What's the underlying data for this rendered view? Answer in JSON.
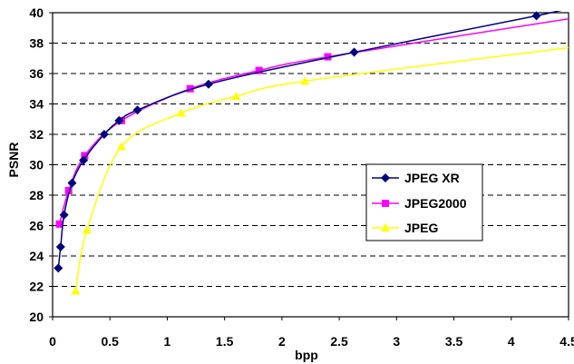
{
  "chart_data": {
    "type": "line",
    "xlabel": "bpp",
    "ylabel": "PSNR",
    "xlim": [
      0,
      4.5
    ],
    "ylim": [
      20,
      40
    ],
    "xticks": [
      0,
      0.5,
      1,
      1.5,
      2,
      2.5,
      3,
      3.5,
      4,
      4.5
    ],
    "xtick_labels": [
      "0",
      "0.5",
      "1",
      "1.5",
      "2",
      "2.5",
      "3",
      "3.5",
      "4",
      "4.5"
    ],
    "yticks": [
      20,
      22,
      24,
      26,
      28,
      30,
      32,
      34,
      36,
      38,
      40
    ],
    "ytick_labels": [
      "20",
      "22",
      "24",
      "26",
      "28",
      "30",
      "32",
      "34",
      "36",
      "38",
      "40"
    ],
    "grid": "horizontal dashed",
    "legend_position": "center-right",
    "series": [
      {
        "name": "JPEG XR",
        "color": "#000080",
        "marker": "diamond",
        "x": [
          0.05,
          0.07,
          0.1,
          0.17,
          0.27,
          0.45,
          0.58,
          0.74,
          1.36,
          2.63,
          4.22
        ],
        "y": [
          23.2,
          24.6,
          26.7,
          28.8,
          30.3,
          32.0,
          32.9,
          33.6,
          35.3,
          37.4,
          39.8
        ],
        "curve_end": [
          4.55,
          40.3
        ]
      },
      {
        "name": "JPEG2000",
        "color": "#ff00ff",
        "marker": "square",
        "x": [
          0.06,
          0.14,
          0.28,
          0.6,
          1.2,
          1.8,
          2.4
        ],
        "y": [
          26.1,
          28.3,
          30.6,
          32.9,
          35.0,
          36.2,
          37.1
        ],
        "curve_end": [
          4.55,
          39.6
        ]
      },
      {
        "name": "JPEG",
        "color": "#ffff00",
        "marker": "triangle",
        "x": [
          0.2,
          0.3,
          0.6,
          1.12,
          1.6,
          2.2
        ],
        "y": [
          21.7,
          25.7,
          31.2,
          33.4,
          34.5,
          35.5
        ],
        "curve_end": [
          4.55,
          37.7
        ]
      }
    ]
  },
  "legend": {
    "items": [
      "JPEG XR",
      "JPEG2000",
      "JPEG"
    ]
  }
}
